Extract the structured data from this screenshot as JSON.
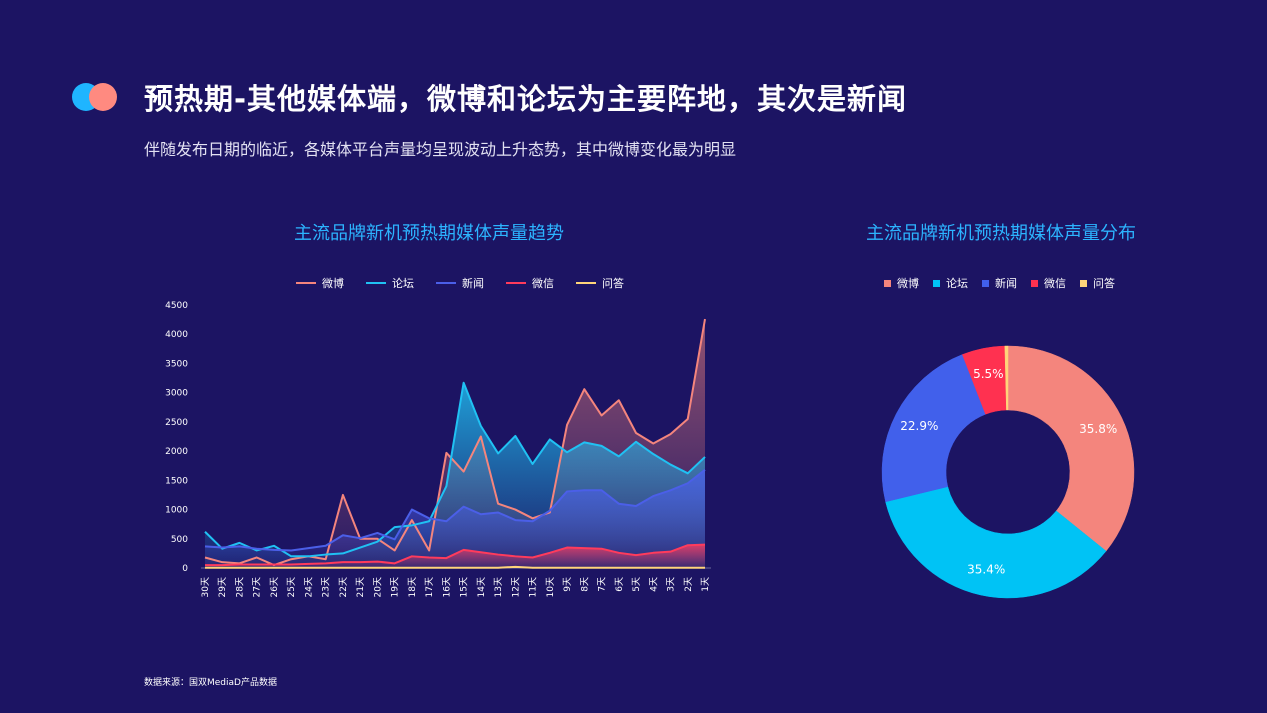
{
  "header": {
    "title": "预热期-其他媒体端，微博和论坛为主要阵地，其次是新闻",
    "subtitle": "伴随发布日期的临近，各媒体平台声量均呈现波动上升态势，其中微博变化最为明显"
  },
  "footer": {
    "source": "数据来源：国双MediaD产品数据"
  },
  "chart_data": [
    {
      "type": "area",
      "title": "主流品牌新机预热期媒体声量趋势",
      "legend_position": "top",
      "ylim": [
        0,
        4500
      ],
      "yticks": [
        0,
        500,
        1000,
        1500,
        2000,
        2500,
        3000,
        3500,
        4000,
        4500
      ],
      "grid": false,
      "categories": [
        "30天",
        "29天",
        "28天",
        "27天",
        "26天",
        "25天",
        "24天",
        "23天",
        "22天",
        "21天",
        "20天",
        "19天",
        "18天",
        "17天",
        "16天",
        "15天",
        "14天",
        "13天",
        "12天",
        "11天",
        "10天",
        "9天",
        "8天",
        "7天",
        "6天",
        "5天",
        "4天",
        "3天",
        "2天",
        "1天"
      ],
      "series": [
        {
          "name": "微博",
          "color": "#f4857d",
          "values": [
            180,
            100,
            80,
            180,
            50,
            150,
            200,
            150,
            1250,
            500,
            500,
            300,
            820,
            300,
            1970,
            1650,
            2250,
            1100,
            1000,
            850,
            950,
            2450,
            3060,
            2610,
            2870,
            2310,
            2130,
            2290,
            2550,
            4260
          ]
        },
        {
          "name": "论坛",
          "color": "#20c1f3",
          "values": [
            620,
            330,
            430,
            300,
            380,
            200,
            200,
            230,
            250,
            350,
            450,
            700,
            730,
            800,
            1400,
            3170,
            2430,
            1960,
            2260,
            1780,
            2200,
            1980,
            2150,
            2090,
            1910,
            2160,
            1950,
            1770,
            1620,
            1900
          ]
        },
        {
          "name": "新闻",
          "color": "#4b5fe8",
          "values": [
            370,
            350,
            370,
            330,
            310,
            300,
            340,
            380,
            560,
            510,
            600,
            490,
            1000,
            850,
            800,
            1050,
            920,
            950,
            820,
            800,
            980,
            1310,
            1330,
            1330,
            1100,
            1060,
            1230,
            1330,
            1450,
            1680
          ]
        },
        {
          "name": "微信",
          "color": "#ff3b5c",
          "values": [
            50,
            50,
            60,
            60,
            60,
            60,
            70,
            80,
            100,
            100,
            110,
            80,
            200,
            180,
            170,
            310,
            270,
            230,
            200,
            180,
            260,
            350,
            340,
            330,
            260,
            220,
            260,
            280,
            390,
            400
          ]
        },
        {
          "name": "问答",
          "color": "#ffd47a",
          "values": [
            5,
            5,
            5,
            5,
            5,
            5,
            5,
            5,
            5,
            5,
            5,
            5,
            5,
            5,
            5,
            5,
            5,
            5,
            20,
            5,
            5,
            5,
            5,
            5,
            5,
            5,
            5,
            5,
            5,
            5
          ]
        }
      ]
    },
    {
      "type": "pie",
      "title": "主流品牌新机预热期媒体声量分布",
      "legend_position": "top",
      "donut": true,
      "slices": [
        {
          "name": "微博",
          "value": 35.8,
          "label": "35.8%",
          "color": "#f4857d"
        },
        {
          "name": "论坛",
          "value": 35.4,
          "label": "35.4%",
          "color": "#00c3f5"
        },
        {
          "name": "新闻",
          "value": 22.9,
          "label": "22.9%",
          "color": "#4160eb"
        },
        {
          "name": "微信",
          "value": 5.5,
          "label": "5.5%",
          "color": "#ff3150"
        },
        {
          "name": "问答",
          "value": 0.4,
          "label": "",
          "color": "#ffd47a"
        }
      ]
    }
  ]
}
